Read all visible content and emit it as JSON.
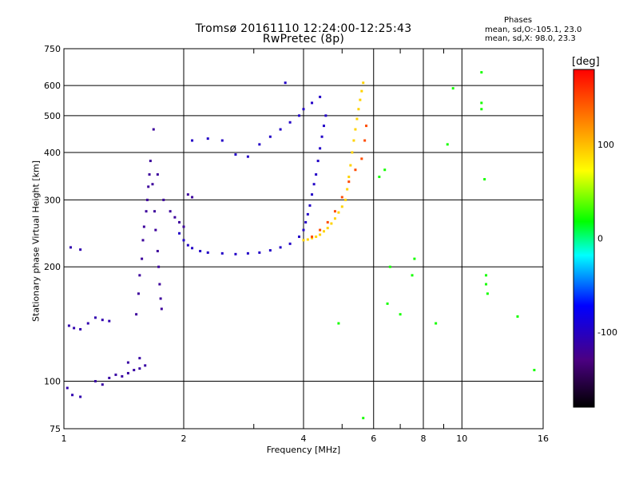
{
  "title": "Tromsø 20161110 12:24:00-12:25:43",
  "subtitle": "RwPretec (8p)",
  "phases": {
    "header": "Phases",
    "mean_o": "mean, sd,O:-105.1, 23.0",
    "mean_x": "mean, sd,X:  98.0, 23.3"
  },
  "chart_data": {
    "type": "scatter",
    "xlabel": "Frequency [MHz]",
    "ylabel": "Stationary phase Virtual Height [km]",
    "x_scale": "log",
    "y_scale": "log",
    "xlim": [
      1,
      16
    ],
    "ylim": [
      75,
      750
    ],
    "x_ticks": [
      1,
      2,
      4,
      6,
      8,
      10,
      16
    ],
    "x_tick_labels": [
      "1",
      "2",
      "4",
      "6",
      "8",
      "10",
      "16"
    ],
    "x_minor_ticks": [
      3,
      5,
      7,
      9
    ],
    "y_ticks": [
      75,
      100,
      200,
      300,
      400,
      500,
      600,
      750
    ],
    "y_tick_labels": [
      "75",
      "100",
      "200",
      "300",
      "400",
      "500",
      "600",
      "750"
    ],
    "grid": true,
    "colorbar": {
      "label": "[deg]",
      "range": [
        -180,
        180
      ],
      "ticks": [
        100,
        0,
        -100
      ],
      "tick_labels": [
        "100",
        "0",
        "-100"
      ],
      "colormap": [
        "#000000",
        "#4b0082",
        "#0000ff",
        "#00ffff",
        "#00ff00",
        "#ffff00",
        "#ff8000",
        "#ff0000"
      ]
    },
    "series": [
      {
        "points": [
          [
            1.03,
            140
          ],
          [
            1.06,
            138
          ],
          [
            1.1,
            137
          ],
          [
            1.15,
            142
          ],
          [
            1.2,
            147
          ],
          [
            1.25,
            145
          ],
          [
            1.3,
            144
          ],
          [
            1.02,
            96
          ],
          [
            1.05,
            92
          ],
          [
            1.1,
            91
          ],
          [
            1.04,
            225
          ],
          [
            1.1,
            222
          ]
        ],
        "phase": -110
      },
      {
        "points": [
          [
            1.3,
            102
          ],
          [
            1.35,
            104
          ],
          [
            1.4,
            103
          ],
          [
            1.45,
            105
          ],
          [
            1.5,
            107
          ],
          [
            1.55,
            108
          ],
          [
            1.6,
            110
          ],
          [
            1.55,
            115
          ],
          [
            1.45,
            112
          ],
          [
            1.2,
            100
          ],
          [
            1.25,
            98
          ]
        ],
        "phase": -115
      },
      {
        "points": [
          [
            1.52,
            150
          ],
          [
            1.54,
            170
          ],
          [
            1.55,
            190
          ],
          [
            1.57,
            210
          ],
          [
            1.58,
            235
          ],
          [
            1.59,
            255
          ],
          [
            1.61,
            280
          ],
          [
            1.62,
            300
          ],
          [
            1.63,
            325
          ],
          [
            1.64,
            350
          ],
          [
            1.65,
            380
          ],
          [
            1.67,
            330
          ],
          [
            1.69,
            280
          ],
          [
            1.7,
            250
          ],
          [
            1.72,
            220
          ],
          [
            1.73,
            200
          ],
          [
            1.74,
            180
          ],
          [
            1.75,
            165
          ],
          [
            1.76,
            155
          ],
          [
            1.68,
            460
          ],
          [
            1.72,
            350
          ],
          [
            1.78,
            300
          ],
          [
            1.85,
            280
          ],
          [
            1.9,
            270
          ],
          [
            1.95,
            262
          ],
          [
            2.0,
            255
          ],
          [
            2.05,
            310
          ],
          [
            2.1,
            305
          ]
        ],
        "phase": -118
      },
      {
        "points": [
          [
            1.95,
            245
          ],
          [
            2.0,
            235
          ],
          [
            2.05,
            228
          ],
          [
            2.1,
            224
          ],
          [
            2.2,
            220
          ],
          [
            2.3,
            218
          ],
          [
            2.5,
            217
          ],
          [
            2.7,
            216
          ],
          [
            2.9,
            217
          ],
          [
            3.1,
            218
          ],
          [
            3.3,
            221
          ],
          [
            3.5,
            225
          ],
          [
            3.7,
            230
          ],
          [
            3.9,
            240
          ],
          [
            4.0,
            250
          ],
          [
            4.05,
            262
          ],
          [
            4.1,
            275
          ],
          [
            4.15,
            290
          ],
          [
            4.2,
            310
          ],
          [
            4.25,
            330
          ],
          [
            4.3,
            350
          ],
          [
            4.35,
            380
          ],
          [
            4.4,
            410
          ],
          [
            4.45,
            440
          ],
          [
            4.5,
            470
          ],
          [
            4.55,
            500
          ],
          [
            2.1,
            430
          ],
          [
            2.3,
            435
          ],
          [
            2.5,
            430
          ],
          [
            2.7,
            395
          ],
          [
            2.9,
            390
          ],
          [
            3.1,
            420
          ],
          [
            3.3,
            440
          ],
          [
            3.5,
            460
          ],
          [
            3.7,
            480
          ],
          [
            3.9,
            500
          ],
          [
            4.0,
            520
          ],
          [
            4.2,
            540
          ],
          [
            4.4,
            560
          ],
          [
            3.6,
            610
          ]
        ],
        "phase": -100
      },
      {
        "points": [
          [
            4.0,
            235
          ],
          [
            4.1,
            236
          ],
          [
            4.2,
            238
          ],
          [
            4.3,
            240
          ],
          [
            4.4,
            243
          ],
          [
            4.5,
            248
          ],
          [
            4.6,
            253
          ],
          [
            4.7,
            260
          ],
          [
            4.8,
            268
          ],
          [
            4.9,
            278
          ],
          [
            5.0,
            288
          ],
          [
            5.1,
            300
          ],
          [
            5.15,
            320
          ],
          [
            5.2,
            345
          ],
          [
            5.25,
            370
          ],
          [
            5.3,
            400
          ],
          [
            5.35,
            430
          ],
          [
            5.4,
            460
          ],
          [
            5.45,
            490
          ],
          [
            5.5,
            520
          ],
          [
            5.55,
            550
          ],
          [
            5.6,
            580
          ],
          [
            5.65,
            610
          ]
        ],
        "phase": 95
      },
      {
        "points": [
          [
            4.2,
            240
          ],
          [
            4.4,
            250
          ],
          [
            4.6,
            262
          ],
          [
            4.8,
            280
          ],
          [
            5.0,
            305
          ],
          [
            5.2,
            335
          ],
          [
            5.4,
            360
          ],
          [
            5.6,
            385
          ],
          [
            5.7,
            430
          ],
          [
            5.75,
            470
          ]
        ],
        "phase": 150
      },
      {
        "points": [
          [
            6.2,
            345
          ],
          [
            6.4,
            360
          ],
          [
            6.6,
            200
          ],
          [
            6.5,
            160
          ],
          [
            7.0,
            150
          ],
          [
            7.5,
            190
          ],
          [
            7.6,
            210
          ],
          [
            8.6,
            142
          ],
          [
            9.2,
            420
          ],
          [
            9.5,
            590
          ],
          [
            11.2,
            650
          ],
          [
            11.4,
            340
          ],
          [
            11.5,
            180
          ],
          [
            11.5,
            190
          ],
          [
            11.6,
            170
          ],
          [
            13.8,
            148
          ],
          [
            15.2,
            107
          ],
          [
            5.65,
            80
          ],
          [
            4.9,
            142
          ],
          [
            11.2,
            520
          ],
          [
            11.2,
            540
          ]
        ],
        "phase": 30
      }
    ]
  }
}
